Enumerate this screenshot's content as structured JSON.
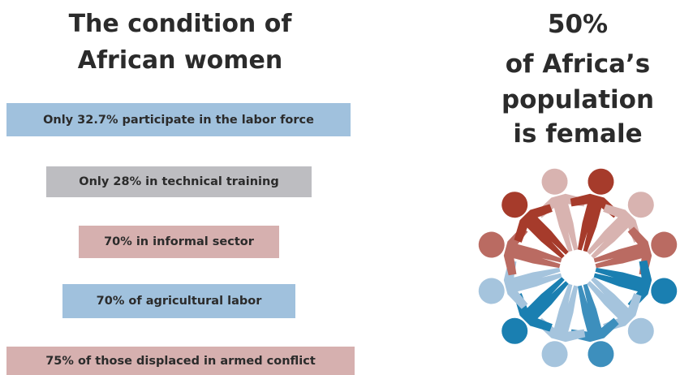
{
  "left": {
    "title": [
      "The condition of",
      "African women"
    ],
    "items": [
      "Only 32.7% participate in the labor force",
      "Only 28% in technical training",
      "70% in informal sector",
      "70% of agricultural labor",
      "75% of those displaced in armed conflict"
    ]
  },
  "right": {
    "headline": [
      "50%",
      "of Africa’s",
      "population",
      "is female"
    ]
  }
}
